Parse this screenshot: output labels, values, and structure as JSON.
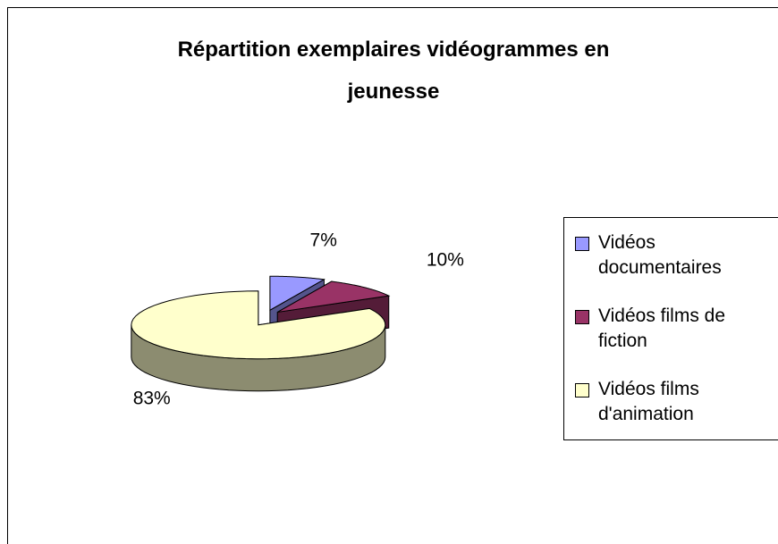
{
  "chart_data": {
    "type": "pie",
    "title": "Répartition exemplaires vidéogrammes en jeunesse",
    "categories": [
      "Vidéos documentaires",
      "Vidéos films de fiction",
      "Vidéos films d'animation"
    ],
    "values": [
      7,
      10,
      83
    ],
    "value_labels": [
      "7%",
      "10%",
      "83%"
    ],
    "colors": [
      "#9999ff",
      "#993366",
      "#ffffcc"
    ],
    "legend": "right"
  }
}
